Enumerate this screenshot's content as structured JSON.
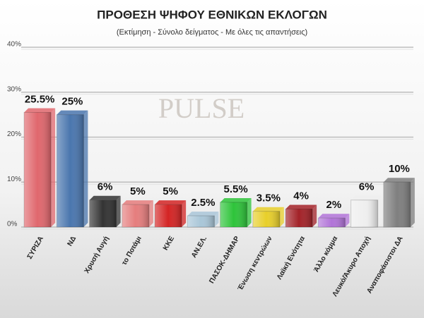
{
  "chart_data": {
    "type": "bar",
    "title": "ΠΡΟΘΕΣΗ ΨΗΦΟΥ ΕΘΝΙΚΩΝ ΕΚΛΟΓΩΝ",
    "subtitle": "(Εκτίμηση - Σύνολο δείγματος - Με όλες τις απαντήσεις)",
    "watermark": "PULSE",
    "categories": [
      "ΣΥΡΙΖΑ",
      "ΝΔ",
      "Χρυσή Αυγή",
      "το Ποτάμι",
      "ΚΚΕ",
      "ΑΝ.ΕΛ.",
      "ΠΑΣΟΚ-ΔΗΜΑΡ",
      "Ένωση κεντρώων",
      "Λαϊκή Ενότητα",
      "Άλλο κόμμα",
      "Λευκό/Άκυρο Αποχή",
      "Αναποφάσιστοι ΔΑ"
    ],
    "values": [
      25.5,
      25,
      6,
      5,
      5,
      2.5,
      5.5,
      3.5,
      4,
      2,
      6,
      10
    ],
    "value_labels": [
      "25.5%",
      "25%",
      "6%",
      "5%",
      "5%",
      "2.5%",
      "5.5%",
      "3.5%",
      "4%",
      "2%",
      "6%",
      "10%"
    ],
    "colors": [
      "#e0676d",
      "#4a76ae",
      "#333333",
      "#e57d7d",
      "#d42424",
      "#a9c6d8",
      "#2ec43a",
      "#e8cf2a",
      "#a32228",
      "#b173d8",
      "#efefef",
      "#7f7f7f"
    ],
    "ylim": [
      0,
      40
    ],
    "yticks": [
      {
        "value": 0,
        "label": "0%"
      },
      {
        "value": 10,
        "label": "10%"
      },
      {
        "value": 20,
        "label": "20%"
      },
      {
        "value": 30,
        "label": "30%"
      },
      {
        "value": 40,
        "label": "40%"
      }
    ],
    "grid": true
  }
}
